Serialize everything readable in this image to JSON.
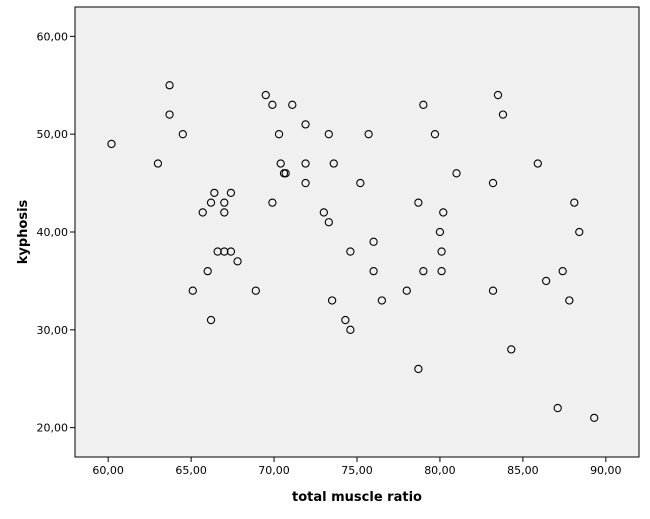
{
  "chart_data": {
    "type": "scatter",
    "title": "",
    "xlabel": "total muscle ratio",
    "ylabel": "kyphosis",
    "xlim": [
      58,
      92
    ],
    "ylim": [
      17,
      63
    ],
    "xticks": [
      60,
      65,
      70,
      75,
      80,
      85,
      90
    ],
    "xtick_labels": [
      "60,00",
      "65,00",
      "70,00",
      "75,00",
      "80,00",
      "85,00",
      "90,00"
    ],
    "yticks": [
      20,
      30,
      40,
      50,
      60
    ],
    "ytick_labels": [
      "20,00",
      "30,00",
      "40,00",
      "50,00",
      "60,00"
    ],
    "grid": false,
    "legend": "none",
    "colors": {
      "plot_background": "#f0f0f0",
      "marker_stroke": "#000000",
      "axis": "#000000"
    },
    "points": [
      {
        "x": 60.2,
        "y": 49
      },
      {
        "x": 63.0,
        "y": 47
      },
      {
        "x": 63.7,
        "y": 55
      },
      {
        "x": 63.7,
        "y": 52
      },
      {
        "x": 64.5,
        "y": 50
      },
      {
        "x": 65.7,
        "y": 42
      },
      {
        "x": 66.2,
        "y": 43
      },
      {
        "x": 66.4,
        "y": 44
      },
      {
        "x": 67.0,
        "y": 43
      },
      {
        "x": 67.0,
        "y": 42
      },
      {
        "x": 67.4,
        "y": 44
      },
      {
        "x": 66.0,
        "y": 36
      },
      {
        "x": 66.6,
        "y": 38
      },
      {
        "x": 67.0,
        "y": 38
      },
      {
        "x": 67.4,
        "y": 38
      },
      {
        "x": 67.8,
        "y": 37
      },
      {
        "x": 65.1,
        "y": 34
      },
      {
        "x": 66.2,
        "y": 31
      },
      {
        "x": 68.9,
        "y": 34
      },
      {
        "x": 69.5,
        "y": 54
      },
      {
        "x": 69.9,
        "y": 53
      },
      {
        "x": 71.1,
        "y": 53
      },
      {
        "x": 70.3,
        "y": 50
      },
      {
        "x": 71.9,
        "y": 51
      },
      {
        "x": 70.4,
        "y": 47
      },
      {
        "x": 70.6,
        "y": 46
      },
      {
        "x": 70.7,
        "y": 46
      },
      {
        "x": 71.9,
        "y": 47
      },
      {
        "x": 71.9,
        "y": 45
      },
      {
        "x": 69.9,
        "y": 43
      },
      {
        "x": 73.3,
        "y": 50
      },
      {
        "x": 73.6,
        "y": 47
      },
      {
        "x": 73.0,
        "y": 42
      },
      {
        "x": 73.3,
        "y": 41
      },
      {
        "x": 75.7,
        "y": 50
      },
      {
        "x": 75.2,
        "y": 45
      },
      {
        "x": 74.6,
        "y": 38
      },
      {
        "x": 76.0,
        "y": 39
      },
      {
        "x": 76.0,
        "y": 36
      },
      {
        "x": 73.5,
        "y": 33
      },
      {
        "x": 74.3,
        "y": 31
      },
      {
        "x": 74.6,
        "y": 30
      },
      {
        "x": 76.5,
        "y": 33
      },
      {
        "x": 79.0,
        "y": 53
      },
      {
        "x": 79.7,
        "y": 50
      },
      {
        "x": 81.0,
        "y": 46
      },
      {
        "x": 78.7,
        "y": 43
      },
      {
        "x": 80.2,
        "y": 42
      },
      {
        "x": 80.0,
        "y": 40
      },
      {
        "x": 80.1,
        "y": 38
      },
      {
        "x": 79.0,
        "y": 36
      },
      {
        "x": 80.1,
        "y": 36
      },
      {
        "x": 78.0,
        "y": 34
      },
      {
        "x": 78.7,
        "y": 26
      },
      {
        "x": 83.5,
        "y": 54
      },
      {
        "x": 83.8,
        "y": 52
      },
      {
        "x": 83.2,
        "y": 45
      },
      {
        "x": 85.9,
        "y": 47
      },
      {
        "x": 83.2,
        "y": 34
      },
      {
        "x": 84.3,
        "y": 28
      },
      {
        "x": 88.1,
        "y": 43
      },
      {
        "x": 88.4,
        "y": 40
      },
      {
        "x": 87.4,
        "y": 36
      },
      {
        "x": 86.4,
        "y": 35
      },
      {
        "x": 87.8,
        "y": 33
      },
      {
        "x": 87.1,
        "y": 22
      },
      {
        "x": 89.3,
        "y": 21
      }
    ]
  }
}
